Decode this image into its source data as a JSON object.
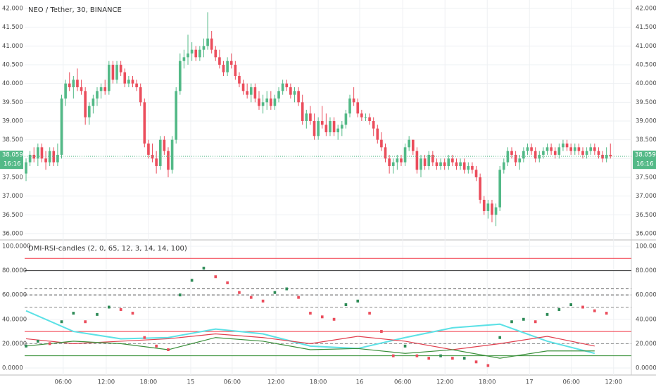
{
  "header": {
    "title": "NEO / Tether, 30, BINANCE"
  },
  "chart_data": [
    {
      "type": "candlestick",
      "up_color": "#53b987",
      "down_color": "#eb4d5c",
      "countdown": "16:16",
      "xlim": [
        -0.36,
        153.3
      ],
      "xticks": [
        {
          "value": 9.4,
          "label": "06:00"
        },
        {
          "value": 20.3,
          "label": "12:00"
        },
        {
          "value": 31.0,
          "label": "18:00"
        },
        {
          "value": 41.7,
          "label": "15"
        },
        {
          "value": 52.2,
          "label": "06:00"
        },
        {
          "value": 63.3,
          "label": "12:00"
        },
        {
          "value": 74.0,
          "label": "18:00"
        },
        {
          "value": 84.5,
          "label": "16"
        },
        {
          "value": 95.4,
          "label": "06:00"
        },
        {
          "value": 106.1,
          "label": "12:00"
        },
        {
          "value": 116.8,
          "label": "18:00"
        },
        {
          "value": 127.5,
          "label": "17"
        },
        {
          "value": 138.1,
          "label": "06:00"
        },
        {
          "value": 148.8,
          "label": "12:00"
        }
      ],
      "ylim": [
        35.83,
        42.226
      ],
      "yticks": [
        {
          "value": 36,
          "label": "36.000"
        },
        {
          "value": 36.5,
          "label": "36.500"
        },
        {
          "value": 37,
          "label": "37.000"
        },
        {
          "value": 37.5,
          "label": "37.500"
        },
        {
          "value": 38,
          "label": "38.000"
        },
        {
          "value": 38.5,
          "label": "38.500"
        },
        {
          "value": 39,
          "label": "39.000"
        },
        {
          "value": 39.5,
          "label": "39.500"
        },
        {
          "value": 40,
          "label": "40.000"
        },
        {
          "value": 40.5,
          "label": "40.500"
        },
        {
          "value": 41,
          "label": "41.000"
        },
        {
          "value": 41.5,
          "label": "41.500"
        },
        {
          "value": 42,
          "label": "42.000"
        }
      ],
      "ohlc": [
        [
          37.6,
          38.0,
          37.4,
          37.9
        ],
        [
          37.9,
          38.2,
          37.8,
          38.1
        ],
        [
          38.1,
          38.3,
          37.9,
          38.0
        ],
        [
          38.0,
          38.4,
          37.8,
          38.3
        ],
        [
          38.3,
          38.4,
          37.9,
          38.0
        ],
        [
          38.0,
          38.2,
          37.7,
          37.9
        ],
        [
          37.9,
          38.3,
          37.8,
          38.2
        ],
        [
          38.2,
          38.3,
          37.8,
          37.9
        ],
        [
          37.9,
          38.4,
          37.8,
          38.1
        ],
        [
          38.1,
          39.7,
          38.0,
          39.6
        ],
        [
          39.6,
          40.1,
          39.4,
          40.0
        ],
        [
          40.0,
          40.3,
          39.8,
          39.9
        ],
        [
          39.9,
          40.2,
          39.6,
          40.1
        ],
        [
          40.1,
          40.4,
          39.8,
          39.9
        ],
        [
          39.9,
          40.1,
          39.7,
          39.8
        ],
        [
          39.8,
          39.9,
          38.9,
          39.1
        ],
        [
          39.1,
          39.5,
          38.9,
          39.4
        ],
        [
          39.4,
          39.7,
          39.2,
          39.6
        ],
        [
          39.6,
          39.9,
          39.4,
          39.8
        ],
        [
          39.8,
          40.0,
          39.6,
          39.9
        ],
        [
          39.9,
          40.1,
          39.7,
          39.8
        ],
        [
          39.8,
          40.6,
          39.7,
          40.5
        ],
        [
          40.5,
          40.6,
          40.0,
          40.1
        ],
        [
          40.1,
          40.6,
          40.0,
          40.5
        ],
        [
          40.5,
          40.6,
          40.2,
          40.3
        ],
        [
          40.3,
          40.4,
          39.9,
          40.0
        ],
        [
          40.0,
          40.2,
          39.9,
          40.1
        ],
        [
          40.1,
          40.2,
          39.9,
          40.0
        ],
        [
          40.0,
          40.1,
          39.8,
          39.9
        ],
        [
          39.9,
          40.0,
          39.4,
          39.5
        ],
        [
          39.5,
          39.6,
          38.3,
          38.4
        ],
        [
          38.4,
          38.5,
          38.0,
          38.1
        ],
        [
          38.1,
          38.4,
          37.9,
          38.0
        ],
        [
          38.0,
          38.2,
          37.6,
          37.8
        ],
        [
          37.8,
          38.6,
          37.7,
          38.5
        ],
        [
          38.5,
          38.6,
          38.1,
          38.2
        ],
        [
          38.2,
          38.3,
          37.5,
          37.7
        ],
        [
          37.7,
          38.6,
          37.6,
          38.5
        ],
        [
          38.5,
          39.9,
          38.4,
          39.8
        ],
        [
          39.8,
          40.8,
          39.7,
          40.6
        ],
        [
          40.6,
          40.9,
          40.4,
          40.7
        ],
        [
          40.7,
          41.3,
          40.5,
          40.8
        ],
        [
          40.8,
          41.1,
          40.6,
          40.9
        ],
        [
          40.9,
          41.0,
          40.6,
          40.7
        ],
        [
          40.7,
          41.0,
          40.6,
          40.9
        ],
        [
          40.9,
          41.2,
          40.7,
          41.0
        ],
        [
          41.0,
          41.9,
          40.9,
          41.2
        ],
        [
          41.2,
          41.4,
          40.8,
          40.9
        ],
        [
          40.9,
          41.0,
          40.6,
          40.7
        ],
        [
          40.7,
          40.9,
          40.4,
          40.5
        ],
        [
          40.5,
          40.6,
          40.2,
          40.3
        ],
        [
          40.3,
          40.7,
          40.2,
          40.6
        ],
        [
          40.6,
          40.8,
          40.4,
          40.5
        ],
        [
          40.5,
          40.6,
          40.1,
          40.2
        ],
        [
          40.2,
          40.3,
          39.9,
          40.0
        ],
        [
          40.0,
          40.1,
          39.7,
          39.8
        ],
        [
          39.8,
          40.0,
          39.6,
          39.7
        ],
        [
          39.7,
          40.0,
          39.5,
          39.9
        ],
        [
          39.9,
          40.0,
          39.5,
          39.6
        ],
        [
          39.6,
          39.8,
          39.3,
          39.4
        ],
        [
          39.4,
          39.7,
          39.2,
          39.5
        ],
        [
          39.5,
          39.8,
          39.3,
          39.6
        ],
        [
          39.6,
          39.8,
          39.3,
          39.4
        ],
        [
          39.4,
          39.7,
          39.3,
          39.6
        ],
        [
          39.6,
          39.9,
          39.5,
          39.8
        ],
        [
          39.8,
          40.1,
          39.7,
          40.0
        ],
        [
          40.0,
          40.1,
          39.8,
          39.9
        ],
        [
          39.9,
          40.0,
          39.6,
          39.7
        ],
        [
          39.7,
          39.9,
          39.5,
          39.8
        ],
        [
          39.8,
          39.9,
          39.4,
          39.5
        ],
        [
          39.5,
          39.7,
          38.9,
          39.0
        ],
        [
          39.0,
          39.3,
          38.8,
          39.2
        ],
        [
          39.2,
          39.4,
          38.9,
          39.0
        ],
        [
          39.0,
          39.2,
          38.5,
          38.6
        ],
        [
          38.6,
          39.1,
          38.5,
          39.0
        ],
        [
          39.0,
          39.4,
          38.8,
          38.9
        ],
        [
          38.9,
          39.2,
          38.6,
          38.7
        ],
        [
          38.7,
          39.1,
          38.6,
          39.0
        ],
        [
          39.0,
          39.1,
          38.6,
          38.7
        ],
        [
          38.7,
          38.9,
          38.5,
          38.8
        ],
        [
          38.8,
          39.0,
          38.6,
          38.9
        ],
        [
          38.9,
          39.3,
          38.8,
          39.2
        ],
        [
          39.2,
          39.7,
          39.1,
          39.6
        ],
        [
          39.6,
          39.9,
          39.4,
          39.5
        ],
        [
          39.5,
          39.6,
          39.1,
          39.2
        ],
        [
          39.2,
          39.3,
          39.0,
          39.1
        ],
        [
          39.1,
          39.2,
          39.0,
          39.1
        ],
        [
          39.1,
          39.2,
          38.9,
          39.0
        ],
        [
          39.0,
          39.1,
          38.6,
          38.8
        ],
        [
          38.8,
          38.9,
          38.4,
          38.5
        ],
        [
          38.5,
          38.7,
          38.2,
          38.3
        ],
        [
          38.3,
          38.4,
          37.9,
          38.0
        ],
        [
          38.0,
          38.1,
          37.6,
          37.8
        ],
        [
          37.8,
          38.0,
          37.6,
          37.9
        ],
        [
          37.9,
          38.1,
          37.7,
          38.0
        ],
        [
          38.0,
          38.1,
          37.8,
          37.9
        ],
        [
          37.9,
          38.4,
          37.8,
          38.3
        ],
        [
          38.3,
          38.6,
          38.2,
          38.5
        ],
        [
          38.5,
          38.5,
          38.1,
          38.2
        ],
        [
          38.2,
          38.3,
          37.6,
          37.7
        ],
        [
          37.7,
          38.1,
          37.5,
          38.0
        ],
        [
          38.0,
          38.1,
          37.7,
          37.8
        ],
        [
          37.8,
          38.2,
          37.7,
          38.1
        ],
        [
          38.1,
          38.2,
          37.8,
          37.9
        ],
        [
          37.9,
          38.0,
          37.7,
          37.8
        ],
        [
          37.8,
          38.0,
          37.7,
          37.9
        ],
        [
          37.9,
          38.0,
          37.7,
          37.8
        ],
        [
          37.8,
          38.1,
          37.7,
          38.0
        ],
        [
          38.0,
          38.1,
          37.8,
          37.9
        ],
        [
          37.9,
          38.0,
          37.7,
          37.8
        ],
        [
          37.8,
          38.0,
          37.7,
          37.9
        ],
        [
          37.9,
          38.0,
          37.6,
          37.7
        ],
        [
          37.7,
          37.9,
          37.6,
          37.8
        ],
        [
          37.8,
          37.9,
          37.6,
          37.7
        ],
        [
          37.7,
          37.8,
          37.4,
          37.5
        ],
        [
          37.5,
          37.6,
          36.8,
          36.9
        ],
        [
          36.9,
          37.0,
          36.5,
          36.6
        ],
        [
          36.6,
          36.9,
          36.4,
          36.8
        ],
        [
          36.8,
          36.9,
          36.3,
          36.5
        ],
        [
          36.5,
          36.8,
          36.2,
          36.7
        ],
        [
          36.7,
          37.8,
          36.6,
          37.7
        ],
        [
          37.7,
          38.0,
          37.6,
          37.9
        ],
        [
          37.9,
          38.3,
          37.8,
          38.2
        ],
        [
          38.2,
          38.3,
          38.0,
          38.1
        ],
        [
          38.1,
          38.2,
          37.8,
          37.9
        ],
        [
          37.9,
          38.1,
          37.7,
          38.0
        ],
        [
          38.0,
          38.3,
          37.9,
          38.2
        ],
        [
          38.2,
          38.4,
          38.1,
          38.3
        ],
        [
          38.3,
          38.4,
          38.1,
          38.2
        ],
        [
          38.2,
          38.3,
          37.9,
          38.0
        ],
        [
          38.0,
          38.2,
          37.9,
          38.1
        ],
        [
          38.1,
          38.3,
          38.0,
          38.2
        ],
        [
          38.2,
          38.4,
          38.1,
          38.3
        ],
        [
          38.3,
          38.4,
          38.1,
          38.2
        ],
        [
          38.2,
          38.3,
          38.0,
          38.1
        ],
        [
          38.1,
          38.4,
          38.0,
          38.3
        ],
        [
          38.3,
          38.5,
          38.2,
          38.4
        ],
        [
          38.4,
          38.5,
          38.2,
          38.3
        ],
        [
          38.3,
          38.4,
          38.1,
          38.2
        ],
        [
          38.2,
          38.4,
          38.1,
          38.3
        ],
        [
          38.3,
          38.4,
          38.1,
          38.2
        ],
        [
          38.2,
          38.3,
          38.0,
          38.1
        ],
        [
          38.1,
          38.3,
          38.0,
          38.2
        ],
        [
          38.2,
          38.4,
          38.1,
          38.3
        ],
        [
          38.3,
          38.4,
          38.1,
          38.2
        ],
        [
          38.2,
          38.3,
          38.0,
          38.1
        ],
        [
          38.1,
          38.2,
          37.9,
          38.0
        ],
        [
          38.0,
          38.3,
          37.9,
          38.1
        ],
        [
          38.1,
          38.4,
          38.0,
          38.059
        ]
      ]
    },
    {
      "type": "indicator",
      "title": "DMI-RSI-candles (2, 0, 65, 12, 3, 14, 14, 100)",
      "ylim": [
        -5.8,
        105.2
      ],
      "yticks": [
        {
          "value": 0,
          "label": "0.0000"
        },
        {
          "value": 20,
          "label": "20.0000"
        },
        {
          "value": 40,
          "label": "40.0000"
        },
        {
          "value": 60,
          "label": "60.0000"
        },
        {
          "value": 80,
          "label": "80.0000"
        },
        {
          "value": 100,
          "label": "100.0000"
        }
      ],
      "levels": [
        {
          "value": 90,
          "color": "#f23645",
          "dashed": false
        },
        {
          "value": 80,
          "color": "#333333",
          "dashed": false
        },
        {
          "value": 65,
          "color": "#555555",
          "dashed": true
        },
        {
          "value": 60,
          "color": "#555555",
          "dashed": true
        },
        {
          "value": 50,
          "color": "#888888",
          "dashed": true
        },
        {
          "value": 30,
          "color": "#f23645",
          "dashed": false
        },
        {
          "value": 20,
          "color": "#888888",
          "dashed": true
        },
        {
          "value": 10,
          "color": "#2e8b2e",
          "dashed": false
        }
      ],
      "rsi": {
        "x": [
          0,
          3,
          6,
          9,
          12,
          15,
          18,
          21,
          24,
          27,
          30,
          33,
          36,
          39,
          42,
          45,
          48,
          51,
          54,
          57,
          60,
          63,
          66,
          69,
          72,
          75,
          78,
          81,
          84,
          87,
          90,
          93,
          96,
          99,
          102,
          105,
          108,
          111,
          114,
          117,
          120,
          123,
          126,
          129,
          132,
          135,
          138,
          141,
          144,
          147
        ],
        "values": [
          18,
          22,
          20,
          38,
          45,
          38,
          44,
          50,
          48,
          45,
          25,
          18,
          15,
          60,
          72,
          82,
          75,
          70,
          62,
          58,
          55,
          62,
          65,
          58,
          45,
          42,
          40,
          52,
          55,
          45,
          30,
          10,
          18,
          10,
          8,
          10,
          8,
          8,
          5,
          2,
          25,
          38,
          40,
          38,
          44,
          48,
          52,
          50,
          47,
          45
        ]
      },
      "lines": [
        {
          "color": "#5ce1e6",
          "x": [
            0,
            12,
            24,
            36,
            48,
            60,
            72,
            84,
            96,
            108,
            120,
            132,
            144
          ],
          "values": [
            47,
            30,
            24,
            25,
            32,
            28,
            18,
            16,
            25,
            33,
            36,
            22,
            12
          ]
        },
        {
          "color": "#e0404f",
          "x": [
            0,
            12,
            24,
            36,
            48,
            60,
            72,
            84,
            96,
            108,
            120,
            132,
            144
          ],
          "values": [
            24,
            20,
            22,
            24,
            28,
            25,
            20,
            26,
            22,
            15,
            20,
            26,
            18
          ]
        },
        {
          "color": "#3a8f3a",
          "x": [
            0,
            12,
            24,
            36,
            48,
            60,
            72,
            84,
            96,
            108,
            120,
            132,
            144
          ],
          "values": [
            18,
            22,
            20,
            15,
            25,
            22,
            15,
            16,
            12,
            15,
            8,
            14,
            14
          ]
        }
      ]
    }
  ]
}
